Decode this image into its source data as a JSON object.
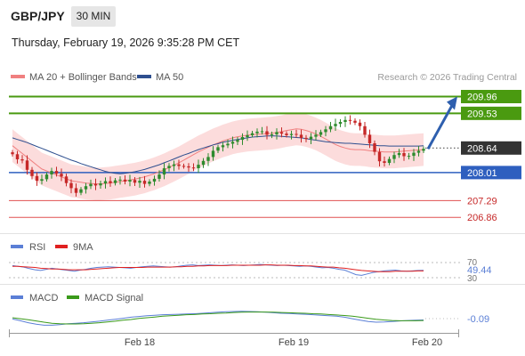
{
  "header": {
    "symbol": "GBP/JPY",
    "timeframe": "30 MIN",
    "datetime": "Thursday, February 19, 2026 9:35:28 PM CET"
  },
  "legend": {
    "ma20_label": "MA 20 + Bollinger Bands",
    "ma50_label": "MA 50",
    "credit": "Research © 2026 Trading Central",
    "ma20_color": "#f08080",
    "ma50_color": "#2e4f8f"
  },
  "rsi_legend": {
    "rsi_label": "RSI",
    "ma_label": "9MA",
    "rsi_color": "#5b7fd6",
    "ma_color": "#e02020"
  },
  "macd_legend": {
    "macd_label": "MACD",
    "signal_label": "MACD Signal",
    "macd_color": "#5b7fd6",
    "signal_color": "#3a9a1a"
  },
  "colors": {
    "up": "#2e8b2e",
    "down": "#c62828",
    "resistance": "#4a9a10",
    "support": "#2e5fbf",
    "target": "#e05050",
    "arrow": "#2e5fae"
  },
  "chart_data": [
    {
      "type": "candlestick",
      "title": "GBP/JPY 30 MIN",
      "ylim": [
        206.5,
        210.2
      ],
      "x_ticks": [
        "Feb 18",
        "Feb 19",
        "Feb 20"
      ],
      "levels": [
        {
          "label": "209.96",
          "value": 209.96,
          "kind": "resistance"
        },
        {
          "label": "209.53",
          "value": 209.53,
          "kind": "resistance"
        },
        {
          "label": "208.64",
          "value": 208.64,
          "kind": "last"
        },
        {
          "label": "208.01",
          "value": 208.01,
          "kind": "support"
        },
        {
          "label": "207.29",
          "value": 207.29,
          "kind": "target"
        },
        {
          "label": "206.86",
          "value": 206.86,
          "kind": "target"
        }
      ],
      "closes": [
        208.48,
        208.35,
        208.32,
        208.08,
        207.92,
        207.8,
        207.84,
        207.96,
        208.05,
        207.98,
        207.91,
        207.74,
        207.61,
        207.49,
        207.58,
        207.66,
        207.72,
        207.68,
        207.73,
        207.79,
        207.74,
        207.81,
        207.83,
        207.78,
        207.82,
        207.75,
        207.8,
        207.72,
        207.78,
        207.85,
        207.96,
        208.12,
        208.18,
        208.22,
        208.18,
        208.17,
        208.14,
        208.12,
        208.21,
        208.31,
        208.41,
        208.57,
        208.66,
        208.71,
        208.75,
        208.8,
        208.85,
        208.92,
        208.97,
        209.02,
        209.06,
        209.07,
        208.98,
        208.99,
        209.05,
        209.01,
        208.97,
        209.0,
        208.98,
        208.9,
        208.87,
        208.93,
        208.98,
        209.05,
        209.12,
        209.2,
        209.26,
        209.31,
        209.36,
        209.34,
        209.29,
        209.2,
        208.98,
        208.76,
        208.54,
        208.3,
        208.26,
        208.36,
        208.46,
        208.51,
        208.43,
        208.44,
        208.52,
        208.57,
        208.62
      ],
      "ma20": [
        208.7,
        208.6,
        208.5,
        208.4,
        208.3,
        208.2,
        208.1,
        208.05,
        208.0,
        207.95,
        207.9,
        207.85,
        207.8,
        207.78,
        207.76,
        207.74,
        207.73,
        207.72,
        207.72,
        207.73,
        207.74,
        207.76,
        207.78,
        207.8,
        207.82,
        207.84,
        207.87,
        207.9,
        207.94,
        207.98,
        208.03,
        208.08,
        208.14,
        208.2,
        208.26,
        208.33,
        208.4,
        208.47,
        208.54,
        208.6,
        208.66,
        208.72,
        208.77,
        208.82,
        208.86,
        208.9,
        208.93,
        208.95,
        208.97,
        208.98,
        208.99,
        209.0,
        209.01,
        209.02,
        209.04,
        209.06,
        209.09,
        209.11,
        209.13,
        209.12,
        209.09,
        209.05,
        209.0,
        208.94,
        208.87,
        208.8,
        208.73,
        208.68,
        208.64,
        208.61,
        208.6,
        208.6,
        208.59,
        208.57,
        208.56,
        208.55,
        208.54,
        208.54,
        208.54,
        208.55,
        208.56,
        208.57,
        208.58,
        208.59,
        208.6
      ],
      "ma50": [
        208.9,
        208.86,
        208.82,
        208.78,
        208.73,
        208.68,
        208.63,
        208.58,
        208.53,
        208.48,
        208.43,
        208.38,
        208.33,
        208.29,
        208.24,
        208.2,
        208.16,
        208.12,
        208.08,
        208.04,
        208.01,
        207.99,
        207.98,
        207.99,
        208.01,
        208.03,
        208.06,
        208.09,
        208.13,
        208.17,
        208.21,
        208.26,
        208.31,
        208.36,
        208.41,
        208.46,
        208.5,
        208.55,
        208.6,
        208.64,
        208.68,
        208.72,
        208.75,
        208.79,
        208.81,
        208.84,
        208.86,
        208.88,
        208.9,
        208.92,
        208.93,
        208.94,
        208.95,
        208.95,
        208.95,
        208.94,
        208.93,
        208.92,
        208.91,
        208.9,
        208.88,
        208.86,
        208.84,
        208.82,
        208.8,
        208.79,
        208.78,
        208.77,
        208.76,
        208.76,
        208.75,
        208.74,
        208.73,
        208.72,
        208.71,
        208.7,
        208.7,
        208.69,
        208.69,
        208.69,
        208.69,
        208.69,
        208.69,
        208.69,
        208.7
      ]
    },
    {
      "type": "line",
      "title": "RSI",
      "ylim": [
        30,
        70
      ],
      "ticks": [
        "70",
        "30"
      ],
      "last_value": "49.44",
      "series": [
        {
          "name": "RSI",
          "values": [
            62,
            60,
            58,
            54,
            51,
            49,
            52,
            55,
            53,
            51,
            49,
            47,
            50,
            52,
            55,
            57,
            58,
            59,
            58,
            57,
            56,
            55,
            57,
            59,
            60,
            61,
            60,
            59,
            58,
            59,
            61,
            63,
            64,
            62,
            63,
            64,
            63,
            62,
            63,
            64,
            63,
            62,
            63,
            64,
            65,
            64,
            63,
            62,
            63,
            62,
            61,
            60,
            61,
            60,
            58,
            56,
            57,
            55,
            52,
            50,
            44,
            38,
            36,
            40,
            44,
            46,
            48,
            49,
            50,
            48,
            47,
            48,
            49,
            49.44
          ]
        },
        {
          "name": "9MA",
          "values": [
            60,
            60,
            59,
            58,
            57,
            55,
            54,
            53,
            53,
            52,
            51,
            51,
            51,
            51,
            52,
            53,
            54,
            55,
            56,
            57,
            57,
            57,
            57,
            57,
            58,
            58,
            58,
            58,
            58,
            59,
            59,
            60,
            60,
            61,
            61,
            62,
            62,
            62,
            62,
            63,
            63,
            63,
            63,
            63,
            63,
            64,
            64,
            63,
            63,
            63,
            62,
            62,
            61,
            61,
            60,
            59,
            58,
            58,
            56,
            55,
            53,
            51,
            49,
            48,
            47,
            46,
            46,
            46,
            47,
            47,
            47,
            47,
            48,
            48
          ]
        }
      ]
    },
    {
      "type": "line",
      "title": "MACD",
      "last_value": "-0.09",
      "series": [
        {
          "name": "MACD",
          "values": [
            -0.05,
            -0.12,
            -0.2,
            -0.26,
            -0.3,
            -0.3,
            -0.28,
            -0.24,
            -0.22,
            -0.2,
            -0.17,
            -0.14,
            -0.1,
            -0.06,
            -0.02,
            0.02,
            0.05,
            0.08,
            0.1,
            0.12,
            0.13,
            0.14,
            0.15,
            0.16,
            0.18,
            0.2,
            0.22,
            0.24,
            0.25,
            0.26,
            0.25,
            0.24,
            0.22,
            0.2,
            0.18,
            0.17,
            0.15,
            0.14,
            0.12,
            0.1,
            0.08,
            0.06,
            0.02,
            -0.04,
            -0.1,
            -0.15,
            -0.18,
            -0.17,
            -0.15,
            -0.13,
            -0.11,
            -0.1,
            -0.09
          ]
        },
        {
          "name": "MACD Signal",
          "values": [
            0.0,
            -0.04,
            -0.08,
            -0.13,
            -0.18,
            -0.22,
            -0.24,
            -0.25,
            -0.25,
            -0.24,
            -0.22,
            -0.2,
            -0.17,
            -0.14,
            -0.1,
            -0.07,
            -0.03,
            0.0,
            0.03,
            0.06,
            0.08,
            0.1,
            0.12,
            0.13,
            0.15,
            0.16,
            0.18,
            0.19,
            0.21,
            0.22,
            0.23,
            0.23,
            0.23,
            0.22,
            0.21,
            0.2,
            0.19,
            0.18,
            0.16,
            0.15,
            0.13,
            0.11,
            0.09,
            0.06,
            0.02,
            -0.02,
            -0.06,
            -0.09,
            -0.11,
            -0.12,
            -0.12,
            -0.12,
            -0.11
          ]
        }
      ]
    }
  ]
}
